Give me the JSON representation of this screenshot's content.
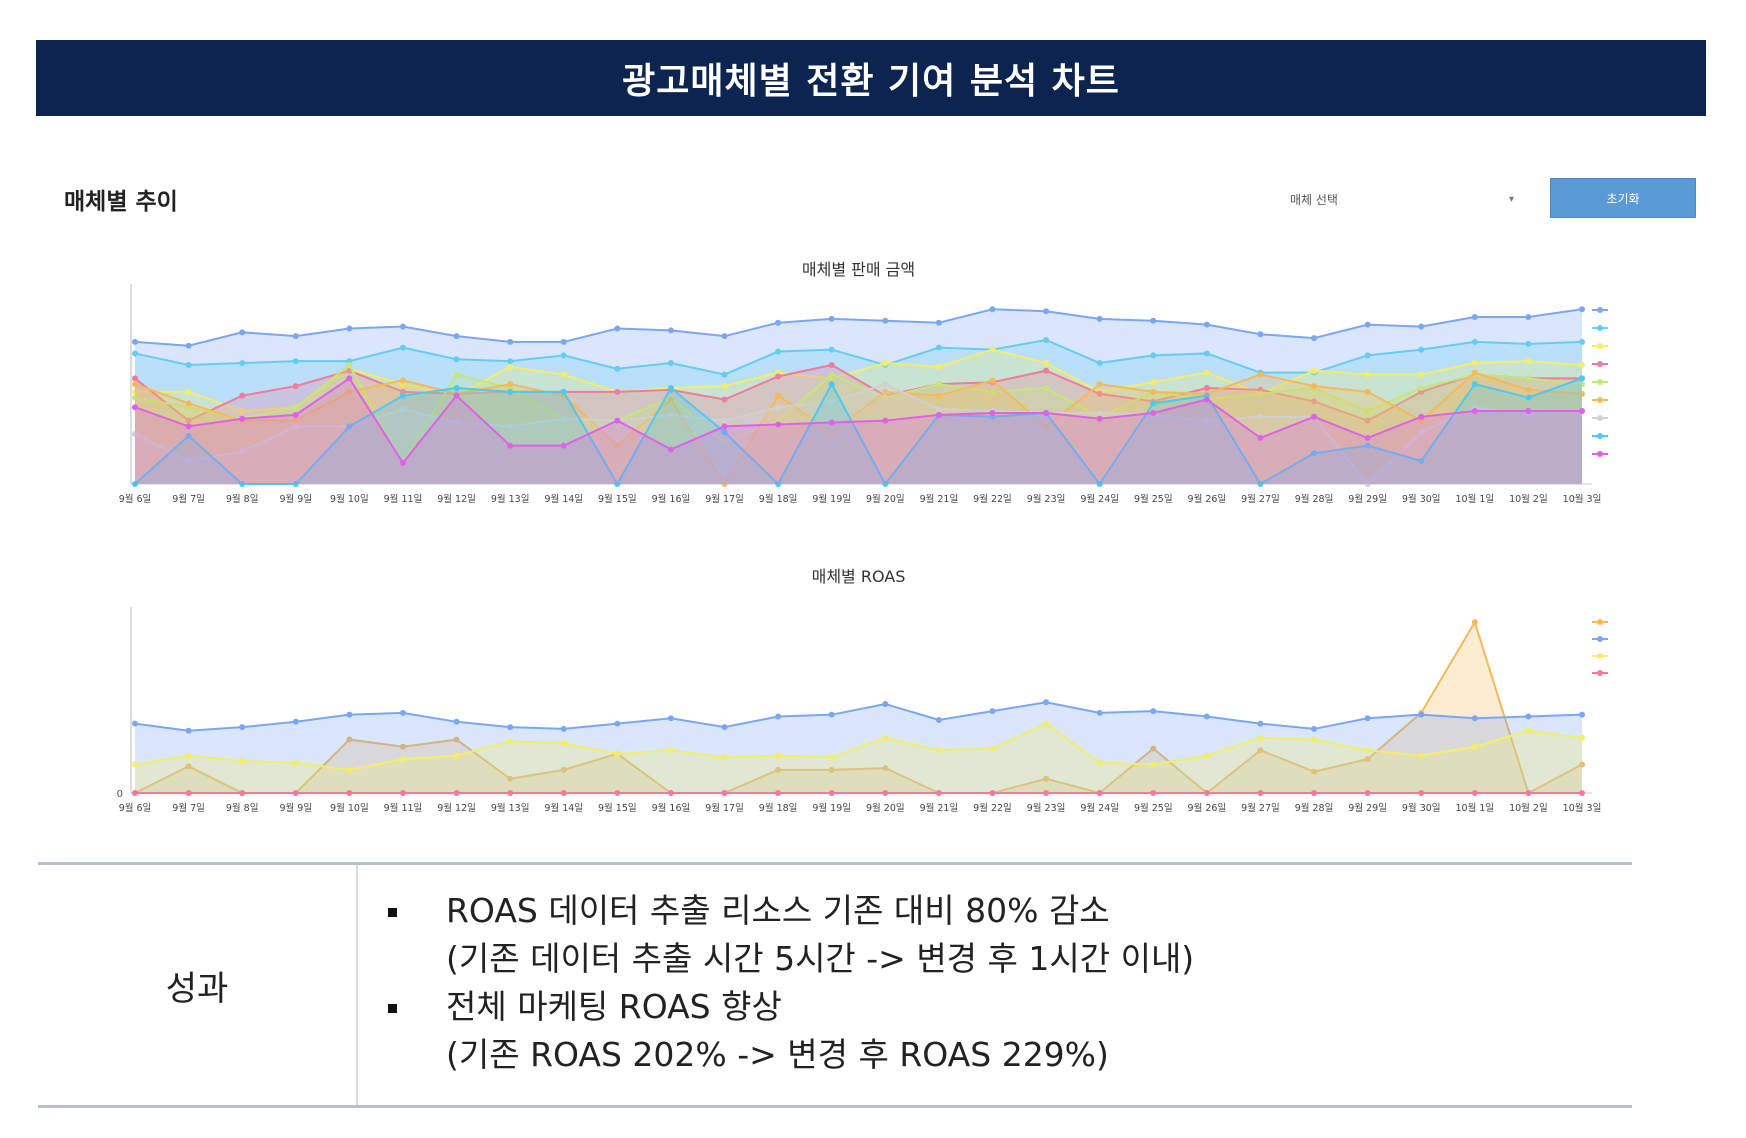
{
  "banner": {
    "title": "광고매체별 전환 기여 분석 차트"
  },
  "section": {
    "title": "매체별 추이",
    "media_select_placeholder": "매체 선택",
    "reset_label": "초기화"
  },
  "colors": {
    "banner_bg": "#0d2451",
    "button_bg": "#5b9bd5",
    "series": [
      "#7aa6f5",
      "#66ccf2",
      "#f2ee6a",
      "#f27a9a",
      "#c5e67a",
      "#f5b95a",
      "#d0d0d0",
      "#4cc9f0",
      "#e061e8"
    ]
  },
  "chart_data": [
    {
      "type": "area",
      "title": "매체별 판매 금액",
      "categories": [
        "9월 6일",
        "9월 7일",
        "9월 8일",
        "9월 9일",
        "9월 10일",
        "9월 11일",
        "9월 12일",
        "9월 13일",
        "9월 14일",
        "9월 15일",
        "9월 16일",
        "9월 17일",
        "9월 18일",
        "9월 19일",
        "9월 20일",
        "9월 21일",
        "9월 22일",
        "9월 23일",
        "9월 24일",
        "9월 25일",
        "9월 26일",
        "9월 27일",
        "9월 28일",
        "9월 29일",
        "9월 30일",
        "10월 1일",
        "10월 2일",
        "10월 3일"
      ],
      "ylim": [
        0,
        100
      ],
      "series": [
        {
          "name": "blue",
          "color": "#7aa6f5",
          "values": [
            74,
            72,
            79,
            77,
            81,
            82,
            77,
            74,
            74,
            81,
            80,
            77,
            84,
            86,
            85,
            84,
            91,
            90,
            86,
            85,
            83,
            78,
            76,
            83,
            82,
            87,
            87,
            91
          ]
        },
        {
          "name": "sky",
          "color": "#66ccf2",
          "values": [
            68,
            62,
            63,
            64,
            64,
            71,
            65,
            64,
            67,
            60,
            63,
            57,
            69,
            70,
            62,
            71,
            70,
            75,
            63,
            67,
            68,
            58,
            58,
            67,
            70,
            74,
            73,
            74
          ]
        },
        {
          "name": "yellow",
          "color": "#f2ee6a",
          "values": [
            48,
            48,
            38,
            40,
            60,
            52,
            46,
            61,
            57,
            48,
            50,
            51,
            58,
            55,
            63,
            61,
            70,
            63,
            48,
            53,
            58,
            47,
            59,
            57,
            57,
            63,
            64,
            62
          ]
        },
        {
          "name": "pink",
          "color": "#f27a9a",
          "values": [
            55,
            33,
            46,
            51,
            59,
            48,
            47,
            48,
            48,
            48,
            49,
            44,
            56,
            62,
            46,
            52,
            53,
            59,
            47,
            43,
            50,
            49,
            43,
            33,
            48,
            57,
            55,
            55
          ]
        },
        {
          "name": "lime",
          "color": "#c5e67a",
          "values": [
            45,
            40,
            34,
            40,
            62,
            12,
            57,
            50,
            34,
            33,
            45,
            22,
            33,
            57,
            45,
            52,
            48,
            50,
            35,
            48,
            44,
            47,
            50,
            38,
            50,
            57,
            55,
            52
          ]
        },
        {
          "name": "orange",
          "color": "#f5b95a",
          "values": [
            52,
            42,
            33,
            33,
            48,
            54,
            47,
            52,
            46,
            20,
            44,
            0,
            46,
            27,
            48,
            46,
            54,
            30,
            52,
            48,
            47,
            57,
            51,
            48,
            33,
            58,
            49,
            47
          ]
        },
        {
          "name": "gray",
          "color": "#d0d0d0",
          "values": [
            26,
            12,
            17,
            30,
            30,
            39,
            32,
            30,
            34,
            33,
            36,
            33,
            40,
            43,
            52,
            39,
            38,
            37,
            37,
            36,
            33,
            35,
            35,
            0,
            27,
            40,
            36,
            38
          ]
        },
        {
          "name": "cyan",
          "color": "#4cc9f0",
          "values": [
            0,
            25,
            0,
            0,
            30,
            46,
            50,
            48,
            48,
            0,
            50,
            27,
            0,
            52,
            0,
            36,
            35,
            37,
            0,
            42,
            46,
            0,
            16,
            20,
            12,
            52,
            45,
            55
          ]
        },
        {
          "name": "magenta",
          "color": "#e061e8",
          "values": [
            40,
            30,
            34,
            36,
            55,
            11,
            46,
            20,
            20,
            33,
            18,
            30,
            31,
            32,
            33,
            36,
            37,
            37,
            34,
            37,
            44,
            24,
            35,
            24,
            35,
            38,
            38,
            38
          ]
        }
      ]
    },
    {
      "type": "area",
      "title": "매체별 ROAS",
      "categories": [
        "9월 6일",
        "9월 7일",
        "9월 8일",
        "9월 9일",
        "9월 10일",
        "9월 11일",
        "9월 12일",
        "9월 13일",
        "9월 14일",
        "9월 15일",
        "9월 16일",
        "9월 17일",
        "9월 18일",
        "9월 19일",
        "9월 20일",
        "9월 21일",
        "9월 22일",
        "9월 23일",
        "9월 24일",
        "9월 25일",
        "9월 26일",
        "9월 27일",
        "9월 28일",
        "9월 29일",
        "9월 30일",
        "10월 1일",
        "10월 2일",
        "10월 3일"
      ],
      "ylim": [
        0,
        100
      ],
      "ytick_zero": "0",
      "series": [
        {
          "name": "orange",
          "color": "#f5b95a",
          "values": [
            0,
            15,
            0,
            0,
            30,
            26,
            30,
            8,
            13,
            22,
            0,
            0,
            13,
            13,
            14,
            0,
            0,
            8,
            0,
            25,
            0,
            24,
            12,
            19,
            45,
            96,
            0,
            16
          ]
        },
        {
          "name": "blue",
          "color": "#7aa6f5",
          "values": [
            39,
            35,
            37,
            40,
            44,
            45,
            40,
            37,
            36,
            39,
            42,
            37,
            43,
            44,
            50,
            41,
            46,
            51,
            45,
            46,
            43,
            39,
            36,
            42,
            44,
            42,
            43,
            44
          ]
        },
        {
          "name": "yellow",
          "color": "#f2ee6a",
          "values": [
            16,
            21,
            18,
            17,
            13,
            19,
            21,
            29,
            28,
            22,
            24,
            20,
            21,
            20,
            31,
            24,
            25,
            39,
            17,
            16,
            21,
            31,
            30,
            24,
            21,
            26,
            35,
            31
          ]
        },
        {
          "name": "pink",
          "color": "#f27a9a",
          "values": [
            0,
            0,
            0,
            0,
            0,
            0,
            0,
            0,
            0,
            0,
            0,
            0,
            0,
            0,
            0,
            0,
            0,
            0,
            0,
            0,
            0,
            0,
            0,
            0,
            0,
            0,
            0,
            0
          ]
        }
      ]
    }
  ],
  "results": {
    "label": "성과",
    "items": [
      {
        "line1": "ROAS 데이터 추출 리소스 기존 대비 80% 감소",
        "line2": "(기존 데이터 추출 시간 5시간 -> 변경 후 1시간 이내)"
      },
      {
        "line1": "전체 마케팅 ROAS 향상",
        "line2": "(기존 ROAS 202% -> 변경 후 ROAS 229%)"
      }
    ]
  }
}
